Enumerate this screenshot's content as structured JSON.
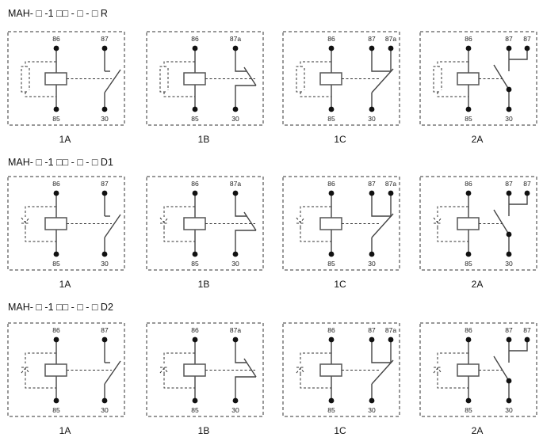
{
  "colors": {
    "line": "#444444",
    "dash": "#333333",
    "background": "#ffffff"
  },
  "rows": [
    {
      "title": "MAH- □ -1 □□ - □ - □ R",
      "suppression_icon": "resistor",
      "panels": [
        {
          "caption": "1A",
          "type": "1A",
          "coil_top": "86",
          "coil_bottom": "85",
          "contact_top": [
            "87"
          ],
          "contact_bottom": "30"
        },
        {
          "caption": "1B",
          "type": "1B",
          "coil_top": "86",
          "coil_bottom": "85",
          "contact_top": [
            "87a"
          ],
          "contact_bottom": "30"
        },
        {
          "caption": "1C",
          "type": "1C",
          "coil_top": "86",
          "coil_bottom": "85",
          "contact_top": [
            "87",
            "87a"
          ],
          "contact_bottom": "30"
        },
        {
          "caption": "2A",
          "type": "2A",
          "coil_top": "86",
          "coil_bottom": "85",
          "contact_top": [
            "87",
            "87"
          ],
          "contact_bottom": "30"
        }
      ]
    },
    {
      "title": "MAH- □ -1 □□ - □ - □ D1",
      "suppression_icon": "diode",
      "panels": [
        {
          "caption": "1A",
          "type": "1A",
          "coil_top": "86",
          "coil_bottom": "85",
          "contact_top": [
            "87"
          ],
          "contact_bottom": "30"
        },
        {
          "caption": "1B",
          "type": "1B",
          "coil_top": "86",
          "coil_bottom": "85",
          "contact_top": [
            "87a"
          ],
          "contact_bottom": "30"
        },
        {
          "caption": "1C",
          "type": "1C",
          "coil_top": "86",
          "coil_bottom": "85",
          "contact_top": [
            "87",
            "87a"
          ],
          "contact_bottom": "30"
        },
        {
          "caption": "2A",
          "type": "2A",
          "coil_top": "86",
          "coil_bottom": "85",
          "contact_top": [
            "87",
            "87"
          ],
          "contact_bottom": "30"
        }
      ]
    },
    {
      "title": "MAH- □ -1 □□ - □ - □ D2",
      "suppression_icon": "diode-reversed",
      "panels": [
        {
          "caption": "1A",
          "type": "1A",
          "coil_top": "86",
          "coil_bottom": "85",
          "contact_top": [
            "87"
          ],
          "contact_bottom": "30"
        },
        {
          "caption": "1B",
          "type": "1B",
          "coil_top": "86",
          "coil_bottom": "85",
          "contact_top": [
            "87a"
          ],
          "contact_bottom": "30"
        },
        {
          "caption": "1C",
          "type": "1C",
          "coil_top": "86",
          "coil_bottom": "85",
          "contact_top": [
            "87",
            "87a"
          ],
          "contact_bottom": "30"
        },
        {
          "caption": "2A",
          "type": "2A",
          "coil_top": "86",
          "coil_bottom": "85",
          "contact_top": [
            "87",
            "87"
          ],
          "contact_bottom": "30"
        }
      ]
    }
  ]
}
